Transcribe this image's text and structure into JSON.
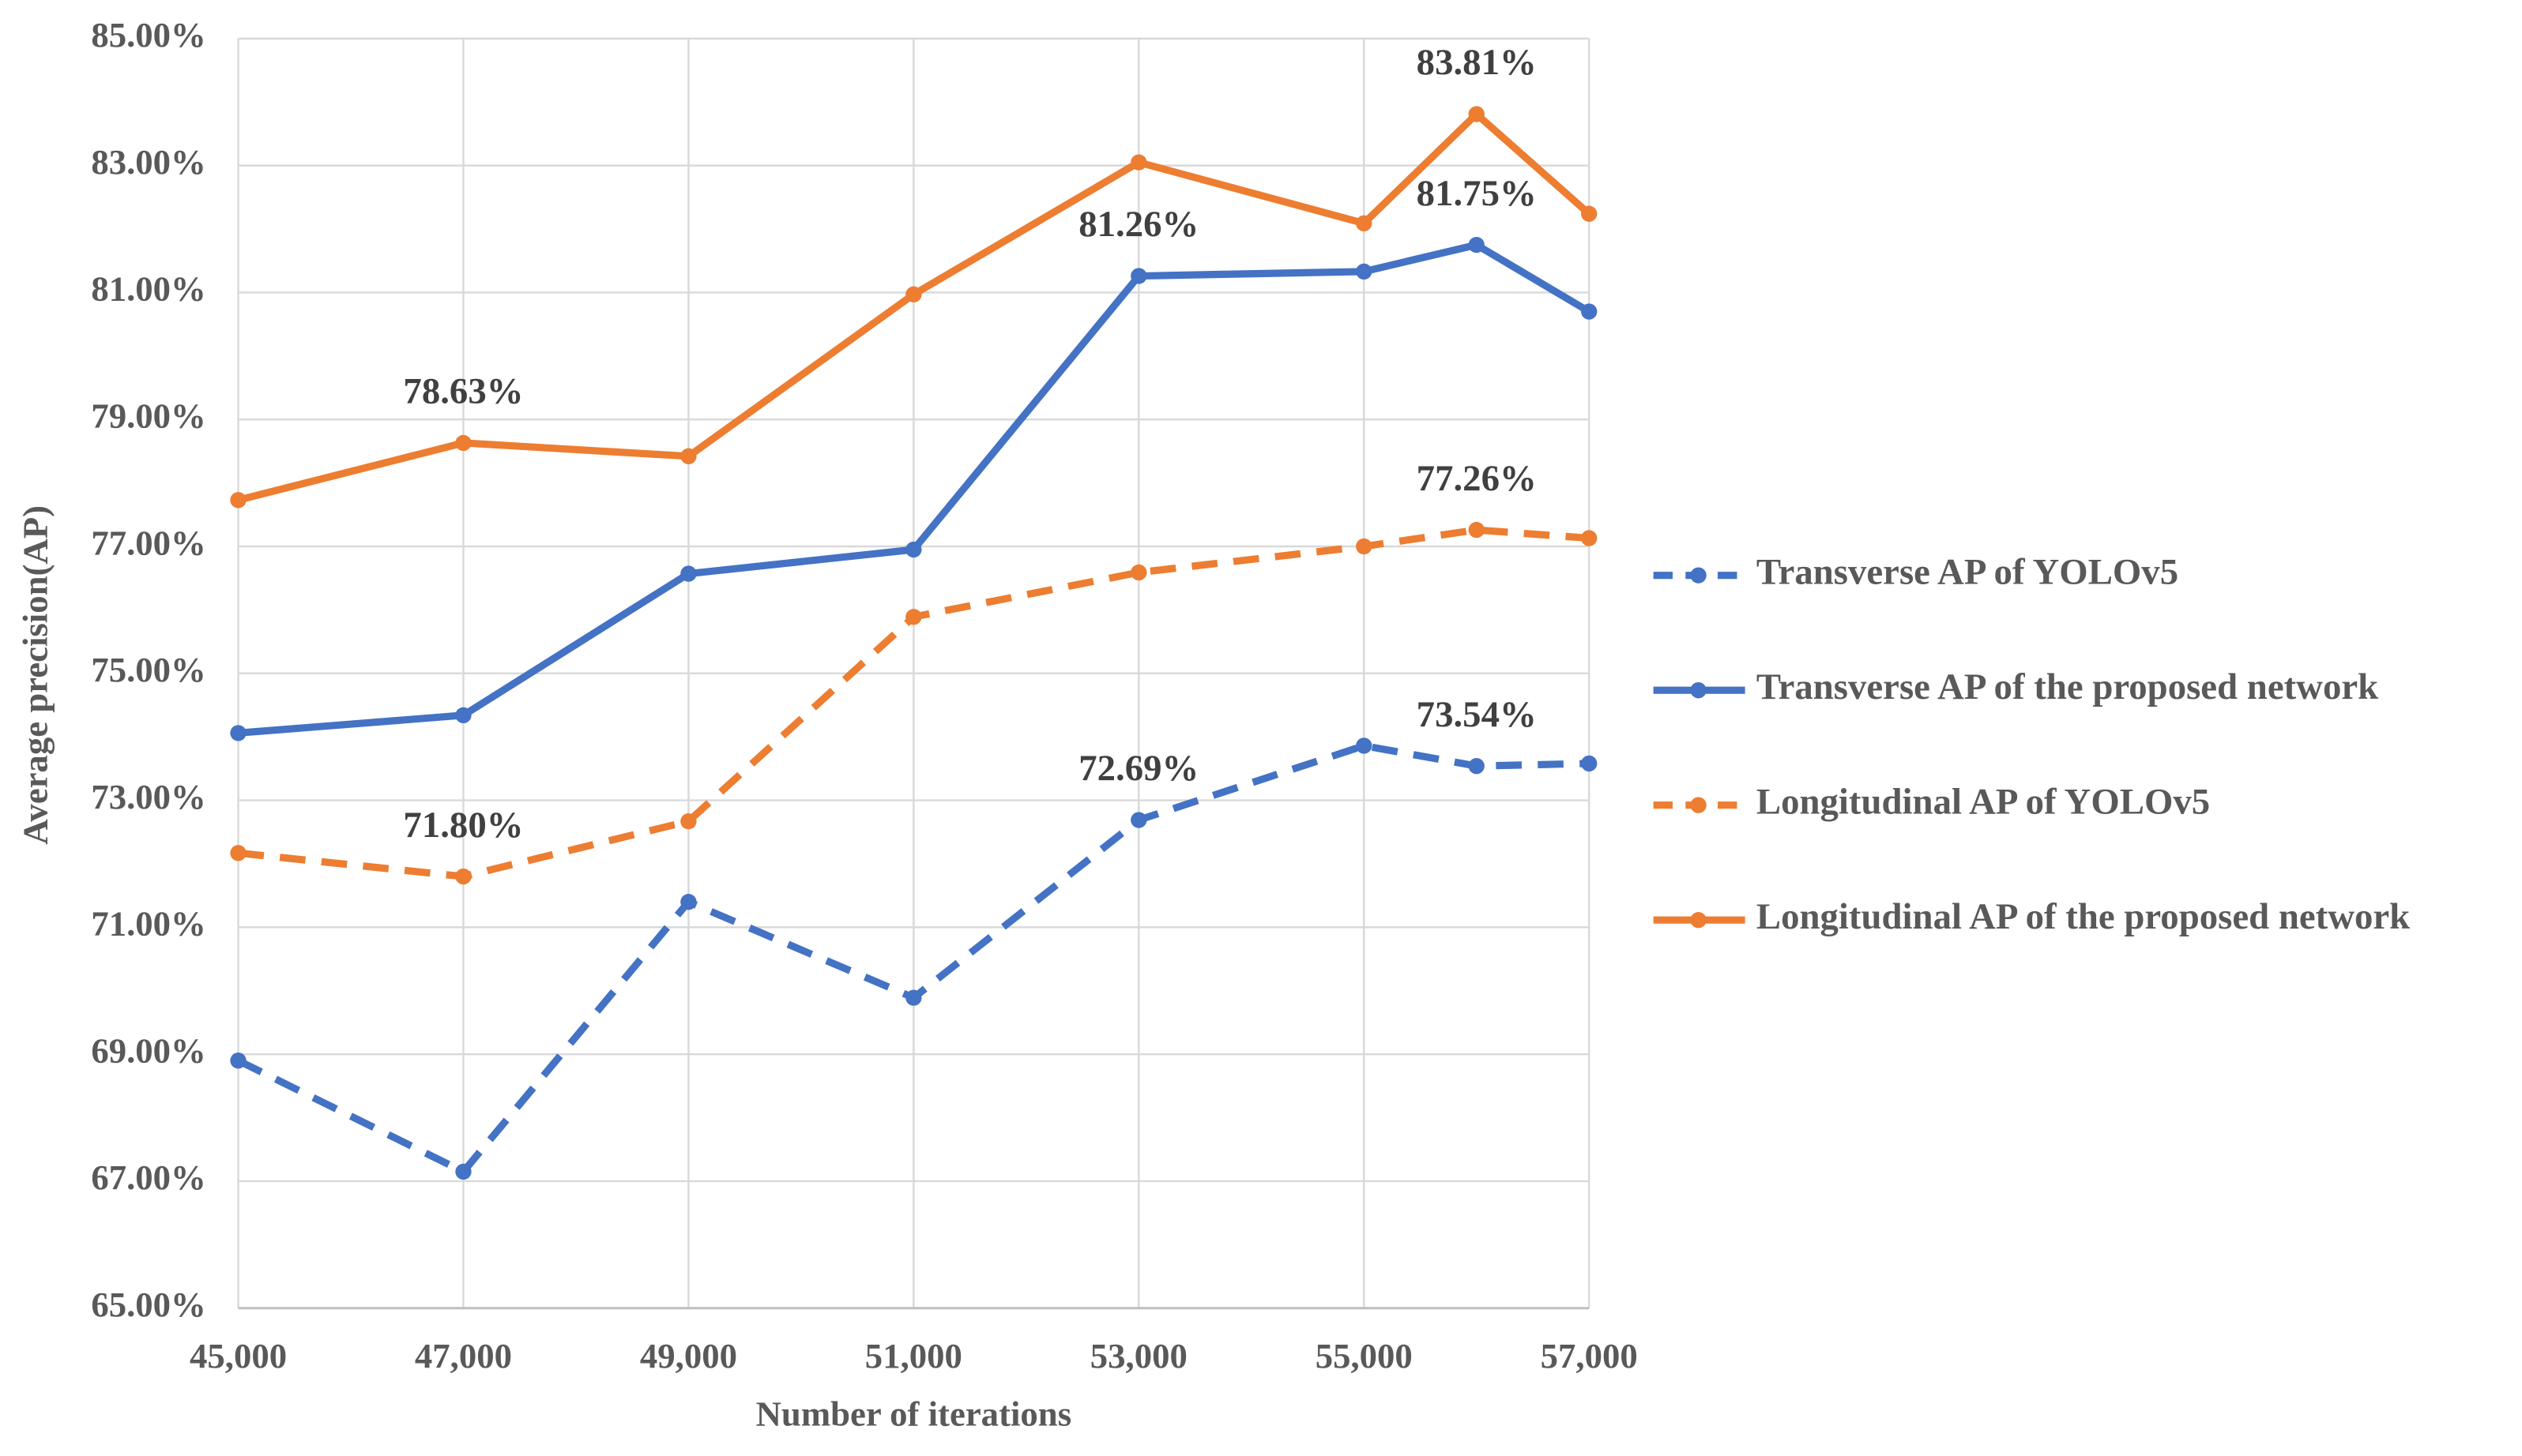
{
  "chart_data": {
    "type": "line",
    "x_label": "Number of iterations",
    "y_label": "Average precision(AP)",
    "x": [
      45000,
      47000,
      49000,
      51000,
      53000,
      55000,
      56000,
      57000
    ],
    "xlim": [
      45000,
      57000
    ],
    "xticks": [
      {
        "value": 45000,
        "label": "45,000"
      },
      {
        "value": 47000,
        "label": "47,000"
      },
      {
        "value": 49000,
        "label": "49,000"
      },
      {
        "value": 51000,
        "label": "51,000"
      },
      {
        "value": 53000,
        "label": "53,000"
      },
      {
        "value": 55000,
        "label": "55,000"
      },
      {
        "value": 57000,
        "label": "57,000"
      }
    ],
    "ylim": [
      65,
      85
    ],
    "yticks": [
      {
        "value": 65,
        "label": "65.00%"
      },
      {
        "value": 67,
        "label": "67.00%"
      },
      {
        "value": 69,
        "label": "69.00%"
      },
      {
        "value": 71,
        "label": "71.00%"
      },
      {
        "value": 73,
        "label": "73.00%"
      },
      {
        "value": 75,
        "label": "75.00%"
      },
      {
        "value": 77,
        "label": "77.00%"
      },
      {
        "value": 79,
        "label": "79.00%"
      },
      {
        "value": 81,
        "label": "81.00%"
      },
      {
        "value": 83,
        "label": "83.00%"
      },
      {
        "value": 85,
        "label": "85.00%"
      }
    ],
    "grid": true,
    "legend": "right",
    "series": [
      {
        "name": "Transverse AP of YOLOv5",
        "color": "#4472c4",
        "dashed": true,
        "values": [
          68.9,
          67.15,
          71.4,
          69.89,
          72.69,
          73.86,
          73.54,
          73.58
        ],
        "value_labels": [
          null,
          null,
          null,
          null,
          "72.69%",
          null,
          "73.54%",
          null
        ]
      },
      {
        "name": "Transverse AP of the proposed network",
        "color": "#4472c4",
        "dashed": false,
        "values": [
          74.06,
          74.34,
          76.57,
          76.95,
          81.26,
          81.33,
          81.75,
          80.7
        ],
        "value_labels": [
          null,
          null,
          null,
          null,
          "81.26%",
          null,
          "81.75%",
          null
        ]
      },
      {
        "name": "Longitudinal AP of YOLOv5",
        "color": "#ed7d31",
        "dashed": true,
        "values": [
          72.17,
          71.8,
          72.67,
          75.89,
          76.59,
          77.0,
          77.26,
          77.13
        ],
        "value_labels": [
          null,
          "71.80%",
          null,
          null,
          null,
          null,
          "77.26%",
          null
        ]
      },
      {
        "name": "Longitudinal AP of the proposed network",
        "color": "#ed7d31",
        "dashed": false,
        "values": [
          77.73,
          78.63,
          78.42,
          80.97,
          83.05,
          82.09,
          83.81,
          82.24
        ],
        "value_labels": [
          null,
          "78.63%",
          null,
          null,
          null,
          null,
          "83.81%",
          null
        ]
      }
    ]
  }
}
